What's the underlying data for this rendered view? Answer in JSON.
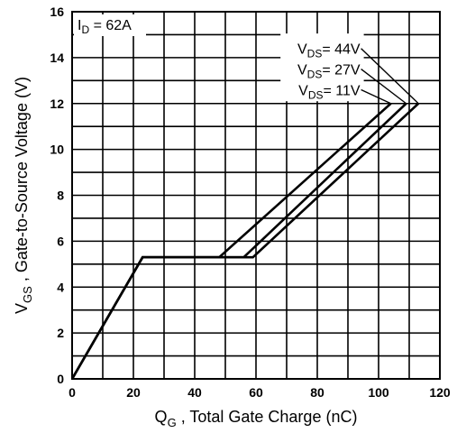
{
  "chart_data": {
    "type": "line",
    "xlabel": {
      "main": "Q",
      "sub": "G",
      "rest": " , Total Gate Charge (nC)"
    },
    "ylabel": {
      "main": "V",
      "sub": "GS",
      "rest": " , Gate-to-Source Voltage (V)"
    },
    "xlim": [
      0,
      120
    ],
    "ylim": [
      0,
      16
    ],
    "xticks": [
      0,
      20,
      40,
      60,
      80,
      100,
      120
    ],
    "yticks": [
      0,
      2,
      4,
      6,
      8,
      10,
      12,
      14,
      16
    ],
    "grid": true,
    "grid_step_x": 10,
    "grid_step_y": 1,
    "annotation": {
      "main": "I",
      "sub": "D",
      "rest": " = 62A"
    },
    "legend_position": "top-right",
    "series": [
      {
        "name": {
          "main": "V",
          "sub": "DS",
          "rest": "= 44V"
        },
        "x": [
          0,
          23,
          59,
          113
        ],
        "y": [
          0,
          5.3,
          5.3,
          12
        ]
      },
      {
        "name": {
          "main": "V",
          "sub": "DS",
          "rest": "= 27V"
        },
        "x": [
          0,
          23,
          56,
          109
        ],
        "y": [
          0,
          5.3,
          5.3,
          12
        ]
      },
      {
        "name": {
          "main": "V",
          "sub": "DS",
          "rest": "= 11V"
        },
        "x": [
          0,
          23,
          48,
          104
        ],
        "y": [
          0,
          5.3,
          5.3,
          12
        ]
      }
    ]
  }
}
